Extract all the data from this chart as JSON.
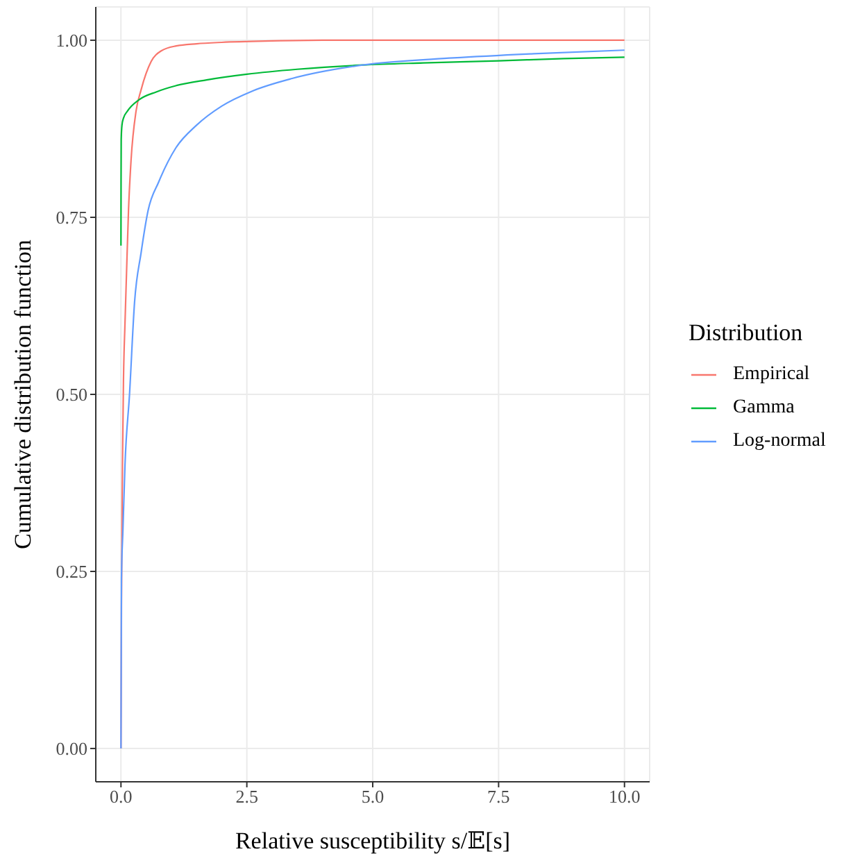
{
  "chart_data": {
    "type": "line",
    "xlabel": "Relative susceptibility s/𝔼[s]",
    "ylabel": "Cumulative distribution function",
    "legend_title": "Distribution",
    "legend": "right",
    "grid": true,
    "marker": "none",
    "line_style": "solid",
    "xlim": [
      -0.5,
      10.5
    ],
    "ylim": [
      -0.047,
      1.047
    ],
    "xticks": [
      {
        "value": 0,
        "label": "0.0"
      },
      {
        "value": 2.5,
        "label": "2.5"
      },
      {
        "value": 5,
        "label": "5.0"
      },
      {
        "value": 7.5,
        "label": "7.5"
      },
      {
        "value": 10,
        "label": "10.0"
      }
    ],
    "yticks": [
      {
        "value": 0,
        "label": "0.00"
      },
      {
        "value": 0.25,
        "label": "0.25"
      },
      {
        "value": 0.5,
        "label": "0.50"
      },
      {
        "value": 0.75,
        "label": "0.75"
      },
      {
        "value": 1,
        "label": "1.00"
      }
    ],
    "series": [
      {
        "name": "Empirical",
        "color": "#f8766d",
        "x": [
          0,
          0.01,
          0.03,
          0.05,
          0.08,
          0.11,
          0.15,
          0.2,
          0.3,
          0.4,
          0.6,
          0.8,
          1.1,
          1.5,
          2,
          3,
          4,
          10
        ],
        "values": [
          0,
          0.2,
          0.4,
          0.52,
          0.6,
          0.67,
          0.76,
          0.83,
          0.9,
          0.93,
          0.97,
          0.985,
          0.992,
          0.995,
          0.997,
          0.999,
          1,
          1
        ]
      },
      {
        "name": "Gamma",
        "color": "#00ba38",
        "x": [
          0,
          0.002,
          0.005,
          0.02,
          0.05,
          0.13,
          0.36,
          0.7,
          1.1,
          1.7,
          2.5,
          3.5,
          4.8,
          6,
          7.5,
          8.8,
          10
        ],
        "values": [
          0.71,
          0.8,
          0.86,
          0.88,
          0.89,
          0.9,
          0.916,
          0.927,
          0.936,
          0.944,
          0.952,
          0.959,
          0.965,
          0.968,
          0.971,
          0.974,
          0.976
        ]
      },
      {
        "name": "Log-normal",
        "color": "#619cff",
        "x": [
          0,
          0.01,
          0.04,
          0.08,
          0.17,
          0.27,
          0.4,
          0.54,
          0.75,
          1.09,
          1.5,
          2,
          2.6,
          3.4,
          4.8,
          6.6,
          8.2,
          10
        ],
        "values": [
          0,
          0.24,
          0.31,
          0.4,
          0.5,
          0.63,
          0.7,
          0.76,
          0.8,
          0.848,
          0.88,
          0.907,
          0.928,
          0.946,
          0.965,
          0.975,
          0.981,
          0.986
        ]
      }
    ]
  }
}
